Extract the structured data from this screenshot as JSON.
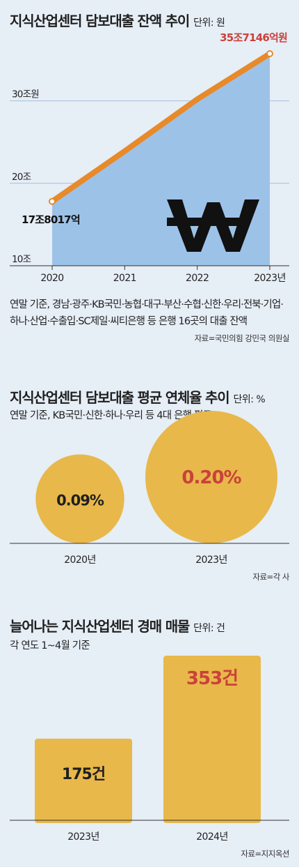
{
  "chart_data": [
    {
      "type": "area",
      "title": "지식산업센터 담보대출 잔액 추이",
      "unit": "단위: 원",
      "x": [
        "2020",
        "2021",
        "2022",
        "2023년"
      ],
      "values_jo": [
        17.8017,
        23.9,
        30.2,
        35.7146
      ],
      "ylim": [
        10,
        38
      ],
      "y_ticks": [
        "10조",
        "20조",
        "30조원"
      ],
      "y_tick_values": [
        10,
        20,
        30
      ],
      "grid": true,
      "labels": {
        "first": "17조8017억",
        "last": "35조7146억원"
      },
      "note": "연말 기준, 경남·광주·KB국민·농협·대구·부산·수협·신한·우리·전북·기업·하나·산업·수출입·SC제일·씨티은행 등 은행 16곳의 대출 잔액",
      "source": "자료=국민의힘 강민국 의원실",
      "colors": {
        "area": "#9dc2e8",
        "line": "#e8892a",
        "grid": "#a9bfd6",
        "highlight": "#c9423a"
      },
      "icon": "won-sign-icon"
    },
    {
      "type": "bubble",
      "title": "지식산업센터 담보대출 평균 연체율 추이",
      "unit": "단위: %",
      "subtitle": "연말 기준, KB국민·신한·하나·우리 등 4대 은행 평균",
      "categories": [
        "2020년",
        "2023년"
      ],
      "values": [
        0.09,
        0.2
      ],
      "value_labels": [
        "0.09%",
        "0.20%"
      ],
      "source": "자료=각 사",
      "colors": {
        "bubble": "#e8b84a",
        "highlight": "#c9423a"
      }
    },
    {
      "type": "bar",
      "title": "늘어나는 지식산업센터 경매 매물",
      "unit": "단위: 건",
      "subtitle": "각 연도 1~4월 기준",
      "categories": [
        "2023년",
        "2024년"
      ],
      "values": [
        175,
        353
      ],
      "value_labels": [
        "175건",
        "353건"
      ],
      "ylim": [
        0,
        365
      ],
      "source": "자료=지지옥션",
      "colors": {
        "bar": "#e8b84a",
        "highlight": "#c9423a"
      }
    }
  ]
}
